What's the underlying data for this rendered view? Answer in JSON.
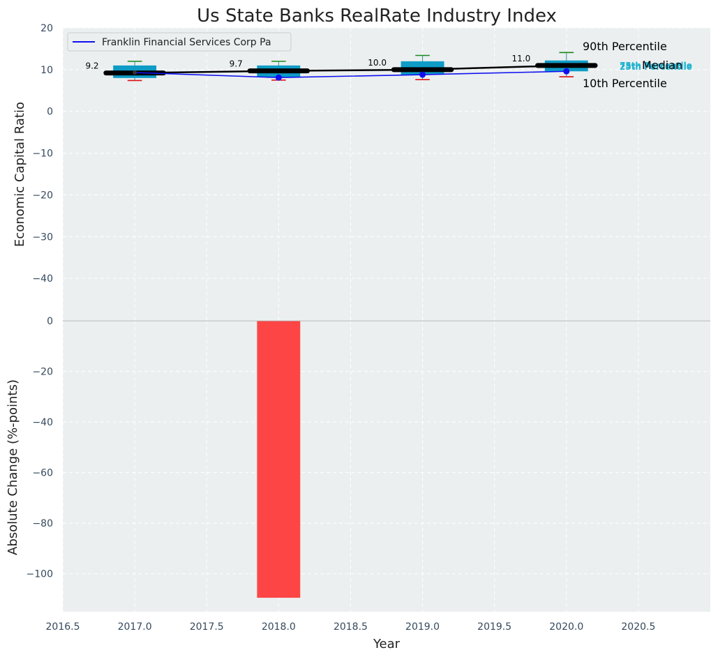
{
  "chart_data": [
    {
      "type": "box",
      "title": "Us State Banks RealRate Industry Index",
      "xlabel": "",
      "ylabel": "Economic Capital Ratio",
      "xlim": [
        2016.5,
        2021.0
      ],
      "ylim": [
        -50,
        20
      ],
      "xticks": [
        2016.5,
        2017.0,
        2017.5,
        2018.0,
        2018.5,
        2019.0,
        2019.5,
        2020.0,
        2020.5
      ],
      "xtick_labels": [
        "2016.5",
        "2017.0",
        "2017.5",
        "2018.0",
        "2018.5",
        "2019.0",
        "2019.5",
        "2020.0",
        "2020.5"
      ],
      "yticks": [
        20,
        10,
        0,
        -10,
        -20,
        -30,
        -40
      ],
      "ytick_labels": [
        "20",
        "10",
        "0",
        "−10",
        "−20",
        "−30",
        "−40"
      ],
      "grid": true,
      "years": [
        2017,
        2018,
        2019,
        2020
      ],
      "boxes": [
        {
          "year": 2017,
          "p10": 7.4,
          "p25": 8.0,
          "median": 9.2,
          "p75": 11.0,
          "p90": 12.0
        },
        {
          "year": 2018,
          "p10": 7.5,
          "p25": 8.2,
          "median": 9.7,
          "p75": 11.0,
          "p90": 12.0
        },
        {
          "year": 2019,
          "p10": 7.6,
          "p25": 8.8,
          "median": 10.0,
          "p75": 12.0,
          "p90": 13.4
        },
        {
          "year": 2020,
          "p10": 8.3,
          "p25": 9.6,
          "median": 11.0,
          "p75": 12.2,
          "p90": 14.1
        }
      ],
      "median_labels": [
        "9.2",
        "9.7",
        "10.0",
        "11.0"
      ],
      "company_series": {
        "name": "Franklin Financial Services Corp Pa",
        "x": [
          2017,
          2018,
          2019,
          2020
        ],
        "y": [
          9.3,
          8.1,
          8.8,
          9.6
        ]
      },
      "percentile_annotations": {
        "p90": "90th Percentile",
        "median": "Median",
        "p10": "10th Percentile",
        "p75": "75th Percentile",
        "p25": "25th Percentile"
      },
      "legend": {
        "location": "upper-left",
        "entries": [
          "Franklin Financial Services Corp Pa"
        ]
      }
    },
    {
      "type": "bar",
      "xlabel": "Year",
      "ylabel": "Absolute Change (%-points)",
      "xlim": [
        2016.5,
        2021.0
      ],
      "ylim": [
        -115,
        0
      ],
      "xticks": [
        2016.5,
        2017.0,
        2017.5,
        2018.0,
        2018.5,
        2019.0,
        2019.5,
        2020.0,
        2020.5
      ],
      "xtick_labels": [
        "2016.5",
        "2017.0",
        "2017.5",
        "2018.0",
        "2018.5",
        "2019.0",
        "2019.5",
        "2020.0",
        "2020.5"
      ],
      "yticks": [
        0,
        -20,
        -40,
        -60,
        -80,
        -100
      ],
      "ytick_labels": [
        "0",
        "−20",
        "−40",
        "−60",
        "−80",
        "−100"
      ],
      "grid": true,
      "categories": [
        2018
      ],
      "values": [
        -109.5
      ],
      "bar_color": "#ff3b3b"
    }
  ]
}
